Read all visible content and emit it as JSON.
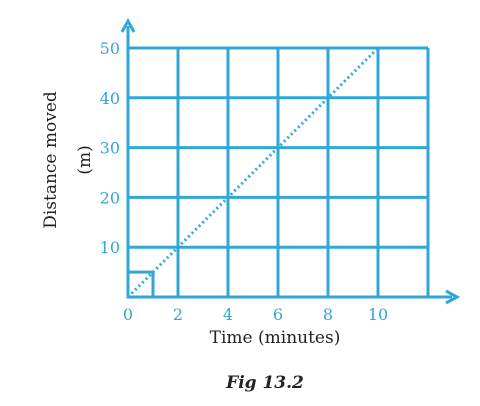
{
  "chart_data": {
    "type": "line",
    "xlabel": "Time (minutes)",
    "ylabel_line1": "Distance moved",
    "ylabel_line2": "(m)",
    "caption": "Fig 13.2",
    "xlim": [
      0,
      12
    ],
    "ylim": [
      0,
      50
    ],
    "x_ticks": [
      0,
      2,
      4,
      6,
      8,
      10
    ],
    "x_tick_labels": [
      "0",
      "2",
      "4",
      "6",
      "8",
      "10"
    ],
    "y_ticks": [
      10,
      20,
      30,
      40,
      50
    ],
    "y_tick_labels": [
      "10",
      "20",
      "30",
      "40",
      "50"
    ],
    "grid": true,
    "series": [
      {
        "x": [
          0,
          2,
          4,
          6,
          8,
          10
        ],
        "y": [
          0,
          10,
          20,
          30,
          40,
          50
        ],
        "style": "dotted"
      }
    ],
    "highlight_square": {
      "x": [
        0,
        1
      ],
      "y": [
        0,
        5
      ]
    },
    "colors": {
      "axis": "#2fa8d8",
      "grid": "#2fa8d8",
      "line": "#2fa8d8",
      "text": "#222222"
    }
  }
}
